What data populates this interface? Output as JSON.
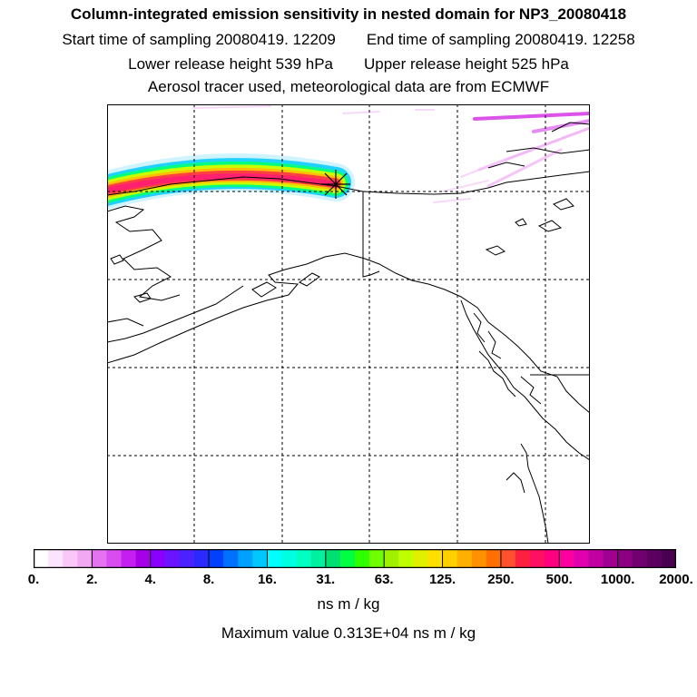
{
  "header": {
    "title": "Column-integrated emission sensitivity in nested domain for NP3_20080418",
    "start_time": "Start time of sampling 20080419. 12209",
    "end_time": "End time of sampling 20080419. 12258",
    "lower_height": "Lower release height  539 hPa",
    "upper_height": "Upper release height  525 hPa",
    "tracer_info": "Aerosol tracer used, meteorological data are from ECMWF"
  },
  "map": {
    "region": "Alaska, Yukon and Pacific Northwest coast",
    "release_marker": "release-point-star"
  },
  "colorbar": {
    "ticks": [
      "0.",
      "2.",
      "4.",
      "8.",
      "16.",
      "31.",
      "63.",
      "125.",
      "250.",
      "500.",
      "1000.",
      "2000."
    ],
    "colors": [
      "#ffffff",
      "#fde4fd",
      "#f9c8f9",
      "#f2a8f2",
      "#e373ee",
      "#d84cf0",
      "#c41ff0",
      "#a600e8",
      "#8a00ff",
      "#6a14ff",
      "#4a22ff",
      "#2a2aff",
      "#0040ff",
      "#0070ff",
      "#00a0ff",
      "#00c8ff",
      "#00ffff",
      "#00ffe0",
      "#00ffc0",
      "#00f0a0",
      "#00e070",
      "#00ff40",
      "#30ff00",
      "#70ff00",
      "#a0f000",
      "#c0ff00",
      "#e0f000",
      "#ffe000",
      "#ffd000",
      "#ffb000",
      "#ff9000",
      "#ff7000",
      "#ff5030",
      "#ff2040",
      "#ff1060",
      "#ff0080",
      "#ff00a0",
      "#e000b0",
      "#c000a0",
      "#a00090",
      "#8a0080",
      "#700070",
      "#5a0060",
      "#4a0050"
    ],
    "units": "ns m / kg",
    "max_value": "Maximum value  0.313E+04 ns m / kg"
  }
}
